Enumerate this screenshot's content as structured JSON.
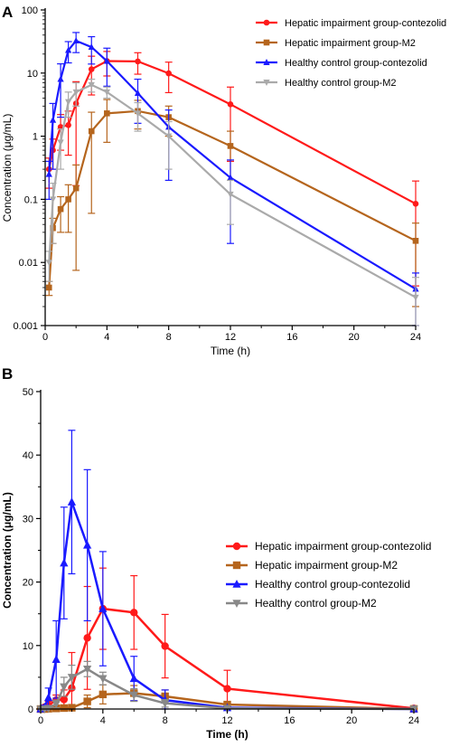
{
  "chart_data": [
    {
      "panel": "A",
      "type": "line",
      "xlabel": "Time (h)",
      "ylabel": "Concentration (μg/mL)",
      "yscale": "log",
      "xlim": [
        0,
        24
      ],
      "ylim": [
        0.001,
        100
      ],
      "xticks": [
        "0",
        "4",
        "8",
        "12",
        "16",
        "20",
        "24"
      ],
      "yticks": [
        "0.001",
        "0.01",
        "0.1",
        "1",
        "10",
        "100"
      ],
      "legend_position": "top-right",
      "series": [
        {
          "name": "Hepatic  impairment group-contezolid",
          "color": "#ff1a1a",
          "marker": "circle",
          "x": [
            0,
            0.25,
            0.5,
            1,
            1.5,
            2,
            3,
            4,
            6,
            8,
            12,
            24
          ],
          "y": [
            0,
            0.3,
            0.6,
            1.4,
            1.5,
            3.3,
            11.5,
            15.5,
            15.3,
            9.9,
            3.2,
            0.085
          ],
          "err": [
            0,
            0.15,
            0.3,
            0.8,
            1.0,
            4.0,
            7.0,
            6.5,
            5.7,
            5.0,
            2.8,
            0.11
          ]
        },
        {
          "name": "Hepatic  impairment group-M2",
          "color": "#b5651d",
          "marker": "square",
          "x": [
            0,
            0.25,
            0.5,
            1,
            1.5,
            2,
            3,
            4,
            6,
            8,
            12,
            24
          ],
          "y": [
            0,
            0.004,
            0.035,
            0.07,
            0.1,
            0.15,
            1.2,
            2.3,
            2.5,
            2.0,
            0.7,
            0.022
          ],
          "err": [
            0,
            0.001,
            0.015,
            0.04,
            0.07,
            0.2,
            1.2,
            1.5,
            1.2,
            1.0,
            0.5,
            0.02
          ]
        },
        {
          "name": "Healthy control group-contezolid",
          "color": "#1a1aff",
          "marker": "triangle",
          "x": [
            0,
            0.25,
            0.5,
            1,
            1.5,
            2,
            3,
            4,
            6,
            8,
            12,
            24
          ],
          "y": [
            0,
            0.25,
            1.8,
            8,
            23,
            32.5,
            25.8,
            15.5,
            4.8,
            1.4,
            0.22,
            0.0038
          ],
          "err": [
            0,
            0.15,
            1.5,
            6.0,
            8.5,
            11.4,
            11.9,
            9.3,
            3.2,
            1.2,
            0.2,
            0.003
          ]
        },
        {
          "name": "Healthy control group-M2",
          "color": "#aaaaaa",
          "marker": "inverted-triangle",
          "x": [
            0,
            0.25,
            0.5,
            1,
            1.5,
            2,
            3,
            4,
            6,
            8,
            12,
            24
          ],
          "y": [
            0,
            0.01,
            0.1,
            0.8,
            3.5,
            5,
            6.5,
            5,
            2.3,
            1.0,
            0.12,
            0.0028
          ],
          "err": [
            0,
            0.005,
            0.08,
            0.5,
            1.5,
            2.0,
            1.5,
            1.0,
            1.1,
            0.7,
            0.08,
            0.003
          ]
        }
      ]
    },
    {
      "panel": "B",
      "type": "line",
      "xlabel": "Time (h)",
      "ylabel": "Concentration (μg/mL)",
      "yscale": "linear",
      "xlim": [
        0,
        24
      ],
      "ylim": [
        0,
        50
      ],
      "xticks": [
        "0",
        "4",
        "8",
        "12",
        "16",
        "20",
        "24"
      ],
      "yticks": [
        "0",
        "10",
        "20",
        "30",
        "40",
        "50"
      ],
      "legend_position": "right",
      "series": [
        {
          "name": "Hepatic  impairment group-contezolid",
          "color": "#ff1a1a",
          "marker": "circle",
          "x": [
            0,
            0.25,
            0.5,
            1,
            1.5,
            2,
            3,
            4,
            6,
            8,
            12,
            24
          ],
          "y": [
            0,
            0.3,
            0.6,
            1.4,
            1.5,
            3.3,
            11.2,
            15.8,
            15.2,
            9.9,
            3.2,
            0.1
          ],
          "err": [
            0,
            0.3,
            0.6,
            0.8,
            1.5,
            5.6,
            8.1,
            6.4,
            5.8,
            5.0,
            2.9,
            0.1
          ]
        },
        {
          "name": "Hepatic  impairment group-M2",
          "color": "#b5651d",
          "marker": "square",
          "x": [
            0,
            0.25,
            0.5,
            1,
            1.5,
            2,
            3,
            4,
            6,
            8,
            12,
            24
          ],
          "y": [
            0,
            0.0,
            0.05,
            0.1,
            0.15,
            0.2,
            1.2,
            2.3,
            2.5,
            2.0,
            0.7,
            0.02
          ],
          "err": [
            0,
            0,
            0.05,
            0.1,
            0.2,
            0.3,
            1.0,
            1.5,
            1.2,
            1.0,
            0.5,
            0.02
          ]
        },
        {
          "name": "Healthy control group-contezolid",
          "color": "#1a1aff",
          "marker": "triangle",
          "x": [
            0,
            0.25,
            0.5,
            1,
            1.5,
            2,
            3,
            4,
            6,
            8,
            12,
            24
          ],
          "y": [
            0,
            0.3,
            1.8,
            7.8,
            23,
            32.6,
            25.8,
            15.8,
            4.8,
            1.4,
            0.2,
            0.0
          ],
          "err": [
            0,
            0.3,
            1.5,
            6.1,
            8.8,
            11.3,
            11.9,
            9.0,
            3.5,
            1.6,
            0.3,
            0.0
          ]
        },
        {
          "name": "Healthy control group-M2",
          "color": "#888888",
          "marker": "inverted-triangle",
          "x": [
            0,
            0.25,
            0.5,
            1,
            1.5,
            2,
            3,
            4,
            6,
            8,
            12,
            24
          ],
          "y": [
            0,
            0.0,
            0.1,
            0.8,
            3.5,
            5,
            6.3,
            4.8,
            2.2,
            0.9,
            0.1,
            0.0
          ],
          "err": [
            0,
            0,
            0.1,
            0.6,
            1.5,
            1.9,
            1.2,
            1.0,
            1.0,
            0.6,
            0.1,
            0.0
          ]
        }
      ]
    }
  ]
}
